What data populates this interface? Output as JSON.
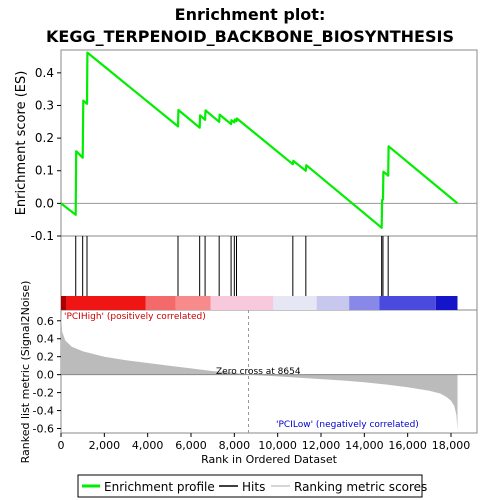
{
  "chart_data": {
    "type": "line",
    "title_line1": "Enrichment plot:",
    "title_line2": "KEGG_TERPENOID_BACKBONE_BIOSYNTHESIS",
    "top_panel": {
      "ylabel": "Enrichment score (ES)",
      "ylim": [
        -0.1,
        0.47
      ],
      "yticks": [
        "-0.1",
        "0.0",
        "0.1",
        "0.2",
        "0.3",
        "0.4"
      ],
      "ytick_values": [
        -0.1,
        0.0,
        0.1,
        0.2,
        0.3,
        0.4
      ],
      "xlim": [
        0,
        19200
      ],
      "series": [
        {
          "name": "Enrichment profile",
          "color": "#00ee00",
          "x": [
            0,
            680,
            700,
            1000,
            1030,
            1200,
            1220,
            5400,
            5420,
            6400,
            6420,
            6650,
            6670,
            7300,
            7320,
            7850,
            7870,
            8000,
            8020,
            8100,
            8120,
            10700,
            10720,
            11300,
            11320,
            14800,
            14820,
            14860,
            14880,
            15100,
            15120,
            18300
          ],
          "y": [
            0.0,
            -0.035,
            0.16,
            0.14,
            0.315,
            0.305,
            0.462,
            0.236,
            0.286,
            0.232,
            0.27,
            0.256,
            0.285,
            0.25,
            0.272,
            0.243,
            0.255,
            0.248,
            0.257,
            0.252,
            0.26,
            0.12,
            0.13,
            0.1,
            0.117,
            -0.075,
            0.01,
            0.012,
            0.097,
            0.085,
            0.175,
            0.0
          ]
        }
      ]
    },
    "hits_panel": {
      "hit_positions": [
        680,
        1000,
        1200,
        5400,
        6400,
        6650,
        7300,
        7850,
        8000,
        8100,
        10700,
        11300,
        14800,
        14860,
        15100
      ]
    },
    "bottom_panel": {
      "ylabel": "Ranked list metric (Signal2Noise)",
      "xlabel": "Rank in Ordered Dataset",
      "ylim": [
        -0.65,
        0.72
      ],
      "yticks": [
        "-0.6",
        "-0.4",
        "-0.2",
        "0.0",
        "0.2",
        "0.4",
        "0.6"
      ],
      "ytick_values": [
        -0.6,
        -0.4,
        -0.2,
        0.0,
        0.2,
        0.4,
        0.6
      ],
      "xticks": [
        "0",
        "2,000",
        "4,000",
        "6,000",
        "8,000",
        "10,000",
        "12,000",
        "14,000",
        "16,000",
        "18,000"
      ],
      "xtick_values": [
        0,
        2000,
        4000,
        6000,
        8000,
        10000,
        12000,
        14000,
        16000,
        18000
      ],
      "metric_curve": {
        "x": [
          0,
          50,
          200,
          500,
          1000,
          2000,
          3000,
          4000,
          5000,
          6000,
          7000,
          8000,
          8654,
          9000,
          10000,
          11000,
          12000,
          13000,
          14000,
          15000,
          16000,
          17000,
          17500,
          17800,
          18000,
          18150,
          18250,
          18300
        ],
        "y": [
          0.7,
          0.48,
          0.38,
          0.31,
          0.26,
          0.2,
          0.16,
          0.13,
          0.1,
          0.07,
          0.04,
          0.02,
          0.0,
          -0.005,
          -0.02,
          -0.035,
          -0.05,
          -0.065,
          -0.085,
          -0.11,
          -0.14,
          -0.18,
          -0.21,
          -0.25,
          -0.29,
          -0.35,
          -0.45,
          -0.62
        ]
      },
      "zero_cross": 8654,
      "zero_cross_label": "Zero cross at 8654",
      "high_label": "'PCIHigh' (positively correlated)",
      "low_label": "'PCILow' (negatively correlated)"
    },
    "legend": [
      {
        "label": "Enrichment profile",
        "color": "#00ee00"
      },
      {
        "label": "Hits",
        "color": "#000000"
      },
      {
        "label": "Ranking metric scores",
        "color": "#c8c8c8"
      }
    ],
    "colors": {
      "profile": "#00ee00",
      "hit": "#000000",
      "metric_fill": "#bbbbbb",
      "zero_line": "#888888",
      "high_label": "#cc0000",
      "low_label": "#0000cc"
    }
  }
}
